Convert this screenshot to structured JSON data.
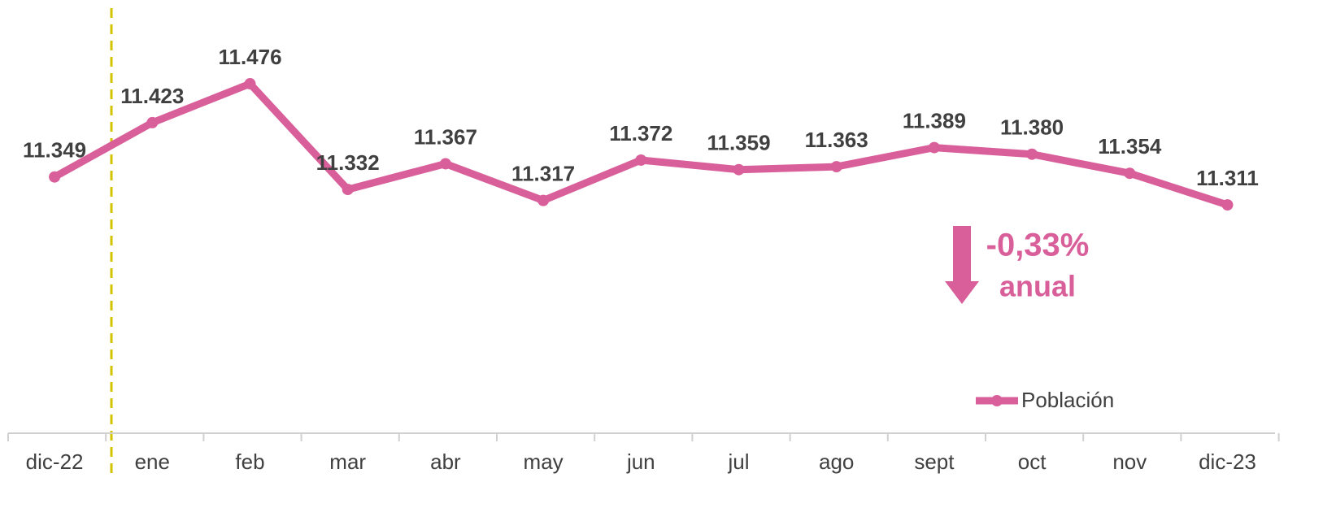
{
  "chart_data": {
    "type": "line",
    "categories": [
      "dic-22",
      "ene",
      "feb",
      "mar",
      "abr",
      "may",
      "jun",
      "jul",
      "ago",
      "sept",
      "oct",
      "nov",
      "dic-23"
    ],
    "series": [
      {
        "name": "Población",
        "color": "#d95f9a",
        "values": [
          11.349,
          11.423,
          11.476,
          11.332,
          11.367,
          11.317,
          11.372,
          11.359,
          11.363,
          11.389,
          11.38,
          11.354,
          11.311
        ],
        "value_labels": [
          "11.349",
          "11.423",
          "11.476",
          "11.332",
          "11.367",
          "11.317",
          "11.372",
          "11.359",
          "11.363",
          "11.389",
          "11.380",
          "11.354",
          "11.311"
        ]
      }
    ],
    "ylim": [
      11.0,
      11.6
    ],
    "annotations": [
      "-0,33%",
      "anual"
    ],
    "legend": "lower right"
  }
}
